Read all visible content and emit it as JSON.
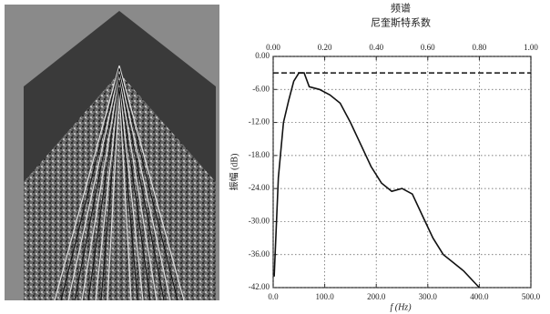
{
  "chart_data": {
    "type": "line",
    "title": "频谱",
    "x2label": "尼奎斯特系数",
    "xlabel": "f (Hz)",
    "ylabel": "振幅 (dB)",
    "x": [
      2,
      10,
      20,
      30,
      40,
      50,
      60,
      70,
      90,
      110,
      130,
      150,
      170,
      190,
      210,
      230,
      250,
      270,
      290,
      310,
      330,
      350,
      370,
      390,
      400
    ],
    "values": [
      -40,
      -22,
      -12,
      -8,
      -4.5,
      -3,
      -3,
      -5.5,
      -6,
      -7,
      -8.5,
      -12,
      -16,
      -20,
      -23,
      -24.5,
      -24,
      -25,
      -29,
      -33,
      -36,
      -37.5,
      -39,
      -41,
      -42
    ],
    "color": "#111111",
    "reference_line": -3,
    "xlim": [
      0,
      500
    ],
    "ylim": [
      -42,
      0
    ],
    "x2lim": [
      0,
      1
    ],
    "xticks": [
      {
        "value": 0,
        "label": "0.0"
      },
      {
        "value": 100,
        "label": "100.0"
      },
      {
        "value": 200,
        "label": "200.0"
      },
      {
        "value": 300,
        "label": "300.0"
      },
      {
        "value": 400,
        "label": "400.0"
      },
      {
        "value": 500,
        "label": "500.0"
      }
    ],
    "x2ticks": [
      {
        "value": 0,
        "label": "0.00"
      },
      {
        "value": 0.2,
        "label": "0.20"
      },
      {
        "value": 0.4,
        "label": "0.40"
      },
      {
        "value": 0.6,
        "label": "0.60"
      },
      {
        "value": 0.8,
        "label": "0.80"
      },
      {
        "value": 1,
        "label": "1.00"
      }
    ],
    "yticks": [
      {
        "value": 0,
        "label": "0.00"
      },
      {
        "value": -6,
        "label": "-6.00"
      },
      {
        "value": -12,
        "label": "-12.00"
      },
      {
        "value": -18,
        "label": "-18.00"
      },
      {
        "value": -24,
        "label": "-24.00"
      },
      {
        "value": -30,
        "label": "-30.00"
      },
      {
        "value": -36,
        "label": "-36.00"
      },
      {
        "value": -42,
        "label": "-42.00"
      }
    ],
    "grid": true
  }
}
